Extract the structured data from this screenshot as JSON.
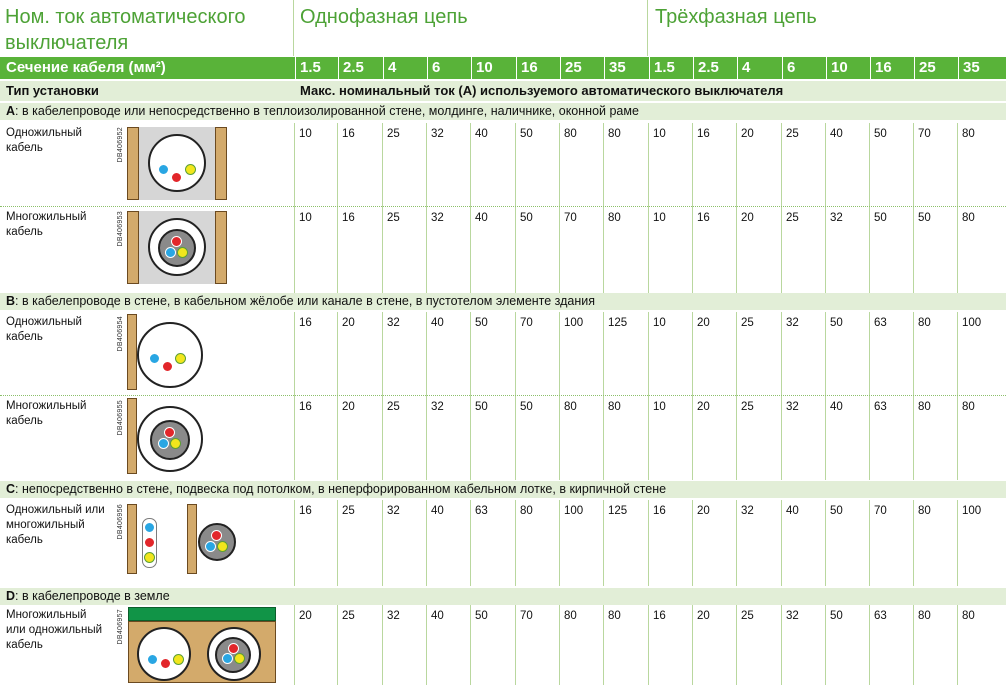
{
  "header": {
    "col1_title": "Ном. ток автоматического выключателя",
    "single_phase": "Однофазная цепь",
    "three_phase": "Трёхфазная цепь"
  },
  "cable_section_label": "Сечение кабеля (мм²)",
  "sizes": [
    "1.5",
    "2.5",
    "4",
    "6",
    "10",
    "16",
    "25",
    "35",
    "1.5",
    "2.5",
    "4",
    "6",
    "10",
    "16",
    "25",
    "35"
  ],
  "install_type_label": "Тип установки",
  "max_current_label": "Макс. номинальный ток (A) используемого автоматического выключателя",
  "sections": [
    {
      "letter": "A",
      "title": ": в кабелепроводе или непосредственно в теплоизолированной стене, молдинге, наличнике, оконной раме",
      "rows": [
        {
          "label": "Одножильный кабель",
          "code": "DB406952",
          "values": [
            "10",
            "16",
            "25",
            "32",
            "40",
            "50",
            "80",
            "80",
            "10",
            "16",
            "20",
            "25",
            "40",
            "50",
            "70",
            "80"
          ]
        },
        {
          "label": "Многожильный кабель",
          "code": "DB406953",
          "values": [
            "10",
            "16",
            "25",
            "32",
            "40",
            "50",
            "70",
            "80",
            "10",
            "16",
            "20",
            "25",
            "32",
            "50",
            "50",
            "80"
          ]
        }
      ]
    },
    {
      "letter": "B",
      "title": ": в кабелепроводе в стене, в кабельном жёлобе или канале в стене, в пустотелом элементе здания",
      "rows": [
        {
          "label": "Одножильный кабель",
          "code": "DB406954",
          "values": [
            "16",
            "20",
            "32",
            "40",
            "50",
            "70",
            "100",
            "125",
            "10",
            "20",
            "25",
            "32",
            "50",
            "63",
            "80",
            "100"
          ]
        },
        {
          "label": "Многожильный кабель",
          "code": "DB406955",
          "values": [
            "16",
            "20",
            "25",
            "32",
            "50",
            "50",
            "80",
            "80",
            "10",
            "20",
            "25",
            "32",
            "40",
            "63",
            "80",
            "80"
          ]
        }
      ]
    },
    {
      "letter": "C",
      "title": ": непосредственно в стене, подвеска под потолком, в неперфорированном кабельном лотке, в кирпичной стене",
      "rows": [
        {
          "label": "Одножильный или многожильный кабель",
          "code": "DB406956",
          "values": [
            "16",
            "25",
            "32",
            "40",
            "63",
            "80",
            "100",
            "125",
            "16",
            "20",
            "32",
            "40",
            "50",
            "70",
            "80",
            "100"
          ]
        }
      ]
    },
    {
      "letter": "D",
      "title": ": в кабелепроводе в земле",
      "rows": [
        {
          "label": "Многожильный или одножильный кабель",
          "code": "DB406957",
          "values": [
            "20",
            "25",
            "32",
            "40",
            "50",
            "70",
            "80",
            "80",
            "16",
            "20",
            "25",
            "32",
            "50",
            "63",
            "80",
            "80"
          ]
        }
      ]
    }
  ],
  "colors": {
    "green": "#59b339",
    "title_green": "#4da236",
    "light_green": "#e2eed7",
    "wood": "#d3aa6b",
    "blue": "#29a6e3",
    "red": "#e2262a",
    "yellow": "#f2e61c"
  }
}
